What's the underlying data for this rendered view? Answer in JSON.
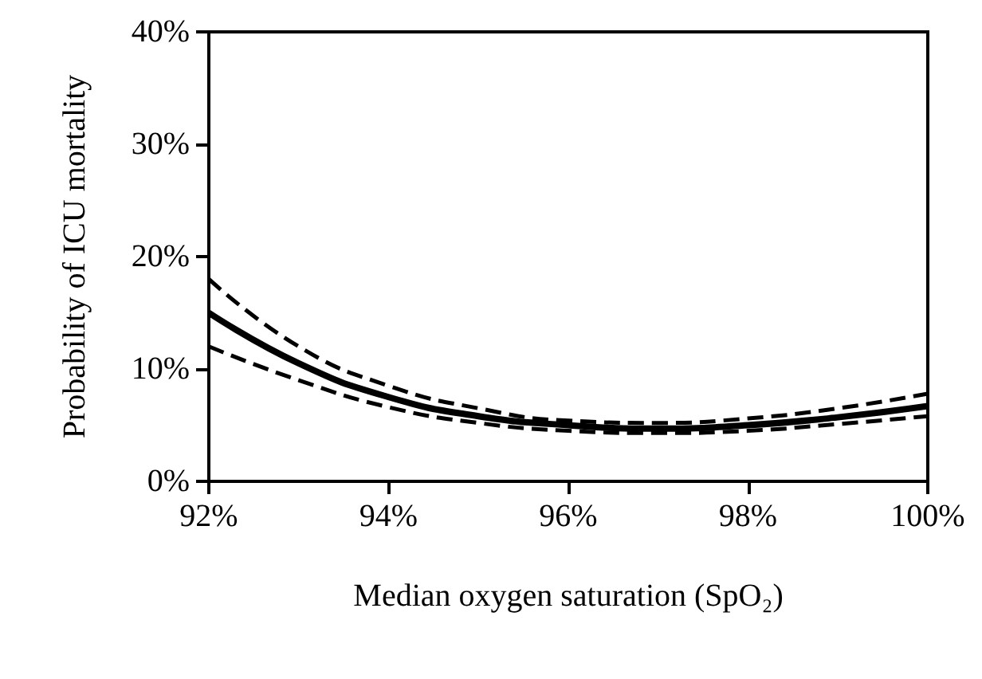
{
  "chart_data": {
    "type": "line",
    "xlabel": "Median oxygen saturation (SpO₂)",
    "ylabel": "Probability of ICU mortality",
    "x": [
      92,
      93,
      94,
      95,
      96,
      97,
      98,
      99,
      100
    ],
    "series": [
      {
        "color": "#000000",
        "line_style": "solid",
        "values": [
          15,
          10.5,
          7.5,
          5.8,
          5.0,
          4.7,
          5.0,
          5.7,
          6.7
        ]
      },
      {
        "color": "#000000",
        "line_style": "dashed",
        "values": [
          18,
          12,
          8.5,
          6.5,
          5.4,
          5.2,
          5.6,
          6.5,
          7.8
        ]
      },
      {
        "color": "#000000",
        "line_style": "dashed",
        "values": [
          12,
          9,
          6.6,
          5.2,
          4.5,
          4.3,
          4.5,
          5.1,
          5.8
        ]
      }
    ],
    "xlim": [
      92,
      100
    ],
    "xticks": [
      {
        "value": 92,
        "label": "92%"
      },
      {
        "value": 94,
        "label": "94%"
      },
      {
        "value": 96,
        "label": "96%"
      },
      {
        "value": 98,
        "label": "98%"
      },
      {
        "value": 100,
        "label": "100%"
      }
    ],
    "ylim": [
      0,
      40
    ],
    "yticks": [
      {
        "value": 0,
        "label": "0%"
      },
      {
        "value": 10,
        "label": "10%"
      },
      {
        "value": 20,
        "label": "20%"
      },
      {
        "value": 30,
        "label": "30%"
      },
      {
        "value": 40,
        "label": "40%"
      }
    ],
    "grid": false,
    "marker": "none"
  }
}
